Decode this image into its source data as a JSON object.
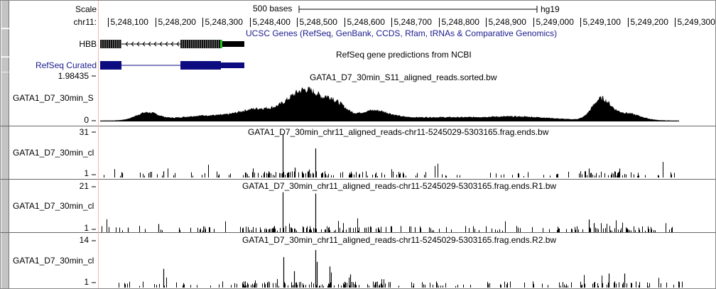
{
  "scale": {
    "label": "Scale",
    "bar_text": "500 bases",
    "assembly": "hg19"
  },
  "ruler": {
    "chrom_label": "chr11:",
    "ticks": [
      "5,248,100",
      "5,248,200",
      "5,248,300",
      "5,248,400",
      "5,248,500",
      "5,248,600",
      "5,248,700",
      "5,248,800",
      "5,248,900",
      "5,249,000",
      "5,249,100",
      "5,249,200",
      "5,249,300"
    ]
  },
  "tracks": {
    "ucsc_genes": {
      "left_label": "HBB",
      "title": "UCSC Genes (RefSeq, GenBank, CCDS, Rfam, tRNAs & Comparative Genomics)"
    },
    "refseq": {
      "left_label": "RefSeq Curated",
      "title": "RefSeq gene predictions from NCBI"
    },
    "bw_sorted": {
      "left_label": "GATA1_D7_30min_S",
      "title": "GATA1_D7_30min_S11_aligned_reads.sorted.bw",
      "ymax": "1.98435",
      "ymin": "0"
    },
    "frag_ends": {
      "left_label": "GATA1_D7_30min_cl",
      "title": "GATA1_D7_30min_chr11_aligned_reads-chr11-5245029-5303165.frag.ends.bw",
      "ymax": "31",
      "ymin": "1"
    },
    "frag_ends_r1": {
      "left_label": "GATA1_D7_30min_cl",
      "title": "GATA1_D7_30min_chr11_aligned_reads-chr11-5245029-5303165.frag.ends.R1.bw",
      "ymax": "21",
      "ymin": "1"
    },
    "frag_ends_r2": {
      "left_label": "GATA1_D7_30min_cl",
      "title": "GATA1_D7_30min_chr11_aligned_reads-chr11-5245029-5303165.frag.ends.R2.bw",
      "ymax": "14",
      "ymin": "1"
    }
  },
  "colors": {
    "gene_blue": "#1b1b8f",
    "refseq_navy": "#0c0c80",
    "highlight_green": "#22c022",
    "signal": "#000000",
    "guide_line": "#f2b8b8"
  }
}
